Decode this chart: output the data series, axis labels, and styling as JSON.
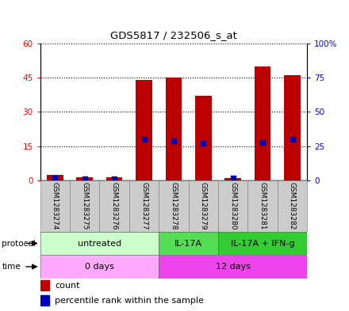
{
  "title": "GDS5817 / 232506_s_at",
  "samples": [
    "GSM1283274",
    "GSM1283275",
    "GSM1283276",
    "GSM1283277",
    "GSM1283278",
    "GSM1283279",
    "GSM1283280",
    "GSM1283281",
    "GSM1283282"
  ],
  "counts": [
    2.5,
    1.5,
    1.5,
    44.0,
    45.0,
    37.0,
    1.0,
    50.0,
    46.0
  ],
  "percentiles": [
    1.8,
    1.2,
    1.2,
    30.0,
    29.0,
    27.0,
    1.5,
    28.0,
    30.0
  ],
  "ylim_left": [
    0,
    60
  ],
  "ylim_right": [
    0,
    100
  ],
  "yticks_left": [
    0,
    15,
    30,
    45,
    60
  ],
  "yticks_right": [
    0,
    25,
    50,
    75,
    100
  ],
  "ytick_labels_left": [
    "0",
    "15",
    "30",
    "45",
    "60"
  ],
  "ytick_labels_right": [
    "0",
    "25",
    "50",
    "75",
    "100%"
  ],
  "bar_color": "#bb0000",
  "percentile_color": "#0000bb",
  "protocol_groups": [
    {
      "label": "untreated",
      "start": 0,
      "end": 4,
      "color": "#ccffcc"
    },
    {
      "label": "IL-17A",
      "start": 4,
      "end": 6,
      "color": "#55dd55"
    },
    {
      "label": "IL-17A + IFN-g",
      "start": 6,
      "end": 9,
      "color": "#33cc33"
    }
  ],
  "time_groups": [
    {
      "label": "0 days",
      "start": 0,
      "end": 4,
      "color": "#ffaaff"
    },
    {
      "label": "12 days",
      "start": 4,
      "end": 9,
      "color": "#ee44ee"
    }
  ],
  "legend_count_color": "#bb0000",
  "legend_percentile_color": "#0000bb",
  "sample_box_color": "#cccccc",
  "sample_box_edge": "#888888"
}
